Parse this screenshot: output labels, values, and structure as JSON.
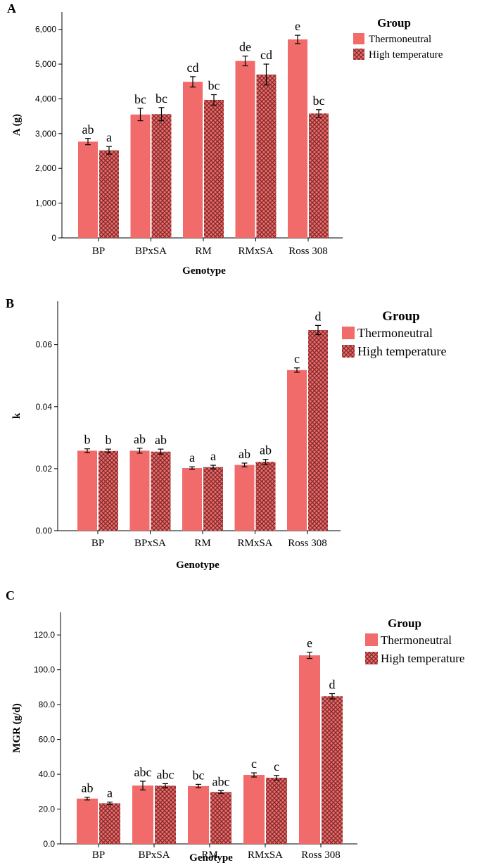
{
  "colors": {
    "thermoneutral": "#f26b6b",
    "high_temperature": "#f26b6b",
    "hatch": "#7a2a2a"
  },
  "chart_data": [
    {
      "type": "bar",
      "panel_label": "A",
      "xlabel": "Genotype",
      "ylabel": "A (g)",
      "ylim": [
        0,
        6500
      ],
      "yticks": [
        0,
        1000,
        2000,
        3000,
        4000,
        5000,
        6000
      ],
      "ytick_labels": [
        "0",
        "1,000",
        "2,000",
        "3,000",
        "4,000",
        "5,000",
        "6,000"
      ],
      "categories": [
        "BP",
        "BPxSA",
        "RM",
        "RMxSA",
        "Ross 308"
      ],
      "legend": {
        "title": "Group",
        "position": "top-right"
      },
      "series": [
        {
          "name": "Thermoneutral",
          "pattern": "solid",
          "values": [
            2770,
            3550,
            4490,
            5090,
            5710
          ],
          "errors": [
            90,
            180,
            150,
            140,
            120
          ],
          "labels": [
            "ab",
            "bc",
            "cd",
            "de",
            "e"
          ]
        },
        {
          "name": "High temperature",
          "pattern": "hatched",
          "values": [
            2520,
            3560,
            3970,
            4700,
            3580
          ],
          "errors": [
            110,
            190,
            150,
            300,
            110
          ],
          "labels": [
            "a",
            "bc",
            "bc",
            "cd",
            "bc"
          ]
        }
      ]
    },
    {
      "type": "bar",
      "panel_label": "B",
      "xlabel": "Genotype",
      "ylabel": "k",
      "ylim": [
        0,
        0.074
      ],
      "yticks": [
        0,
        0.02,
        0.04,
        0.06
      ],
      "ytick_labels": [
        "0.00",
        "0.02",
        "0.04",
        "0.06"
      ],
      "categories": [
        "BP",
        "BPxSA",
        "RM",
        "RMxSA",
        "Ross 308"
      ],
      "legend": {
        "title": "Group",
        "position": "top-right"
      },
      "series": [
        {
          "name": "Thermoneutral",
          "pattern": "solid",
          "values": [
            0.0258,
            0.0258,
            0.0202,
            0.0212,
            0.0518
          ],
          "errors": [
            0.0006,
            0.0008,
            0.0004,
            0.0006,
            0.0007
          ],
          "labels": [
            "b",
            "ab",
            "a",
            "ab",
            "c"
          ]
        },
        {
          "name": "High temperature",
          "pattern": "hatched",
          "values": [
            0.0257,
            0.0255,
            0.0205,
            0.0222,
            0.0647
          ],
          "errors": [
            0.0006,
            0.0008,
            0.0006,
            0.0008,
            0.0015
          ],
          "labels": [
            "b",
            "ab",
            "a",
            "ab",
            "d"
          ]
        }
      ]
    },
    {
      "type": "bar",
      "panel_label": "C",
      "xlabel": "Genotype",
      "ylabel": "MGR (g/d)",
      "ylim": [
        0,
        133
      ],
      "yticks": [
        0,
        20,
        40,
        60,
        80,
        100,
        120
      ],
      "ytick_labels": [
        "0.0",
        "20.0",
        "40.0",
        "60.0",
        "80.0",
        "100.0",
        "120.0"
      ],
      "categories": [
        "BP",
        "BPxSA",
        "RM",
        "RMxSA",
        "Ross 308"
      ],
      "legend": {
        "title": "Group",
        "position": "top-right"
      },
      "series": [
        {
          "name": "Thermoneutral",
          "pattern": "solid",
          "values": [
            26.0,
            33.5,
            33.2,
            39.6,
            108.3
          ],
          "errors": [
            0.8,
            2.5,
            1.0,
            1.2,
            1.8
          ],
          "labels": [
            "ab",
            "abc",
            "bc",
            "c",
            "e"
          ]
        },
        {
          "name": "High temperature",
          "pattern": "hatched",
          "values": [
            23.3,
            33.4,
            29.8,
            38.0,
            84.8
          ],
          "errors": [
            0.7,
            1.2,
            0.8,
            1.3,
            1.5
          ],
          "labels": [
            "a",
            "abc",
            "abc",
            "c",
            "d"
          ]
        }
      ]
    }
  ]
}
